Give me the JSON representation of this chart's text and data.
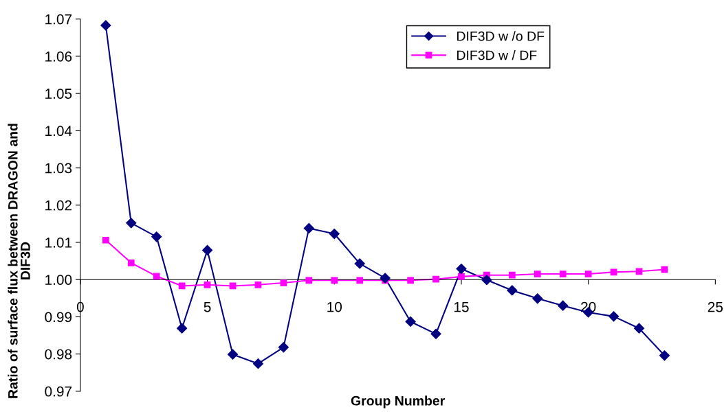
{
  "chart_data": {
    "type": "line",
    "xlabel": "Group Number",
    "ylabel": "Ratio of surface flux between DRAGON and\nDIF3D",
    "x": [
      1,
      2,
      3,
      4,
      5,
      6,
      7,
      8,
      9,
      10,
      11,
      12,
      13,
      14,
      15,
      16,
      17,
      18,
      19,
      20,
      21,
      22,
      23
    ],
    "series": [
      {
        "name": "DIF3D w /o DF",
        "color": "#000080",
        "marker": "diamond",
        "values": [
          1.0683,
          1.0152,
          1.0115,
          0.9869,
          1.0079,
          0.9799,
          0.9774,
          0.9818,
          1.0138,
          1.0123,
          1.0043,
          1.0004,
          0.9887,
          0.9854,
          1.0029,
          0.9999,
          0.9971,
          0.9949,
          0.993,
          0.9912,
          0.9901,
          0.9869,
          0.9796
        ]
      },
      {
        "name": "DIF3D w / DF",
        "color": "#ff00ff",
        "marker": "square",
        "values": [
          1.0106,
          1.0045,
          1.0009,
          0.9983,
          0.9986,
          0.9983,
          0.9986,
          0.9991,
          0.9998,
          0.9998,
          0.9998,
          0.9998,
          0.9998,
          1.0001,
          1.0008,
          1.0012,
          1.0012,
          1.0015,
          1.0015,
          1.0015,
          1.002,
          1.0022,
          1.0027
        ]
      }
    ],
    "xlim": [
      0,
      25
    ],
    "xticks": [
      0,
      5,
      10,
      15,
      20,
      25
    ],
    "ylim": [
      0.97,
      1.07
    ],
    "yticks": [
      0.97,
      0.98,
      0.99,
      {
        "value": 1.0,
        "label": "1.00"
      },
      1.01,
      1.02,
      1.03,
      1.04,
      1.05,
      1.06,
      1.07
    ],
    "grid": false,
    "legend": "top right",
    "line_style": "solid"
  }
}
